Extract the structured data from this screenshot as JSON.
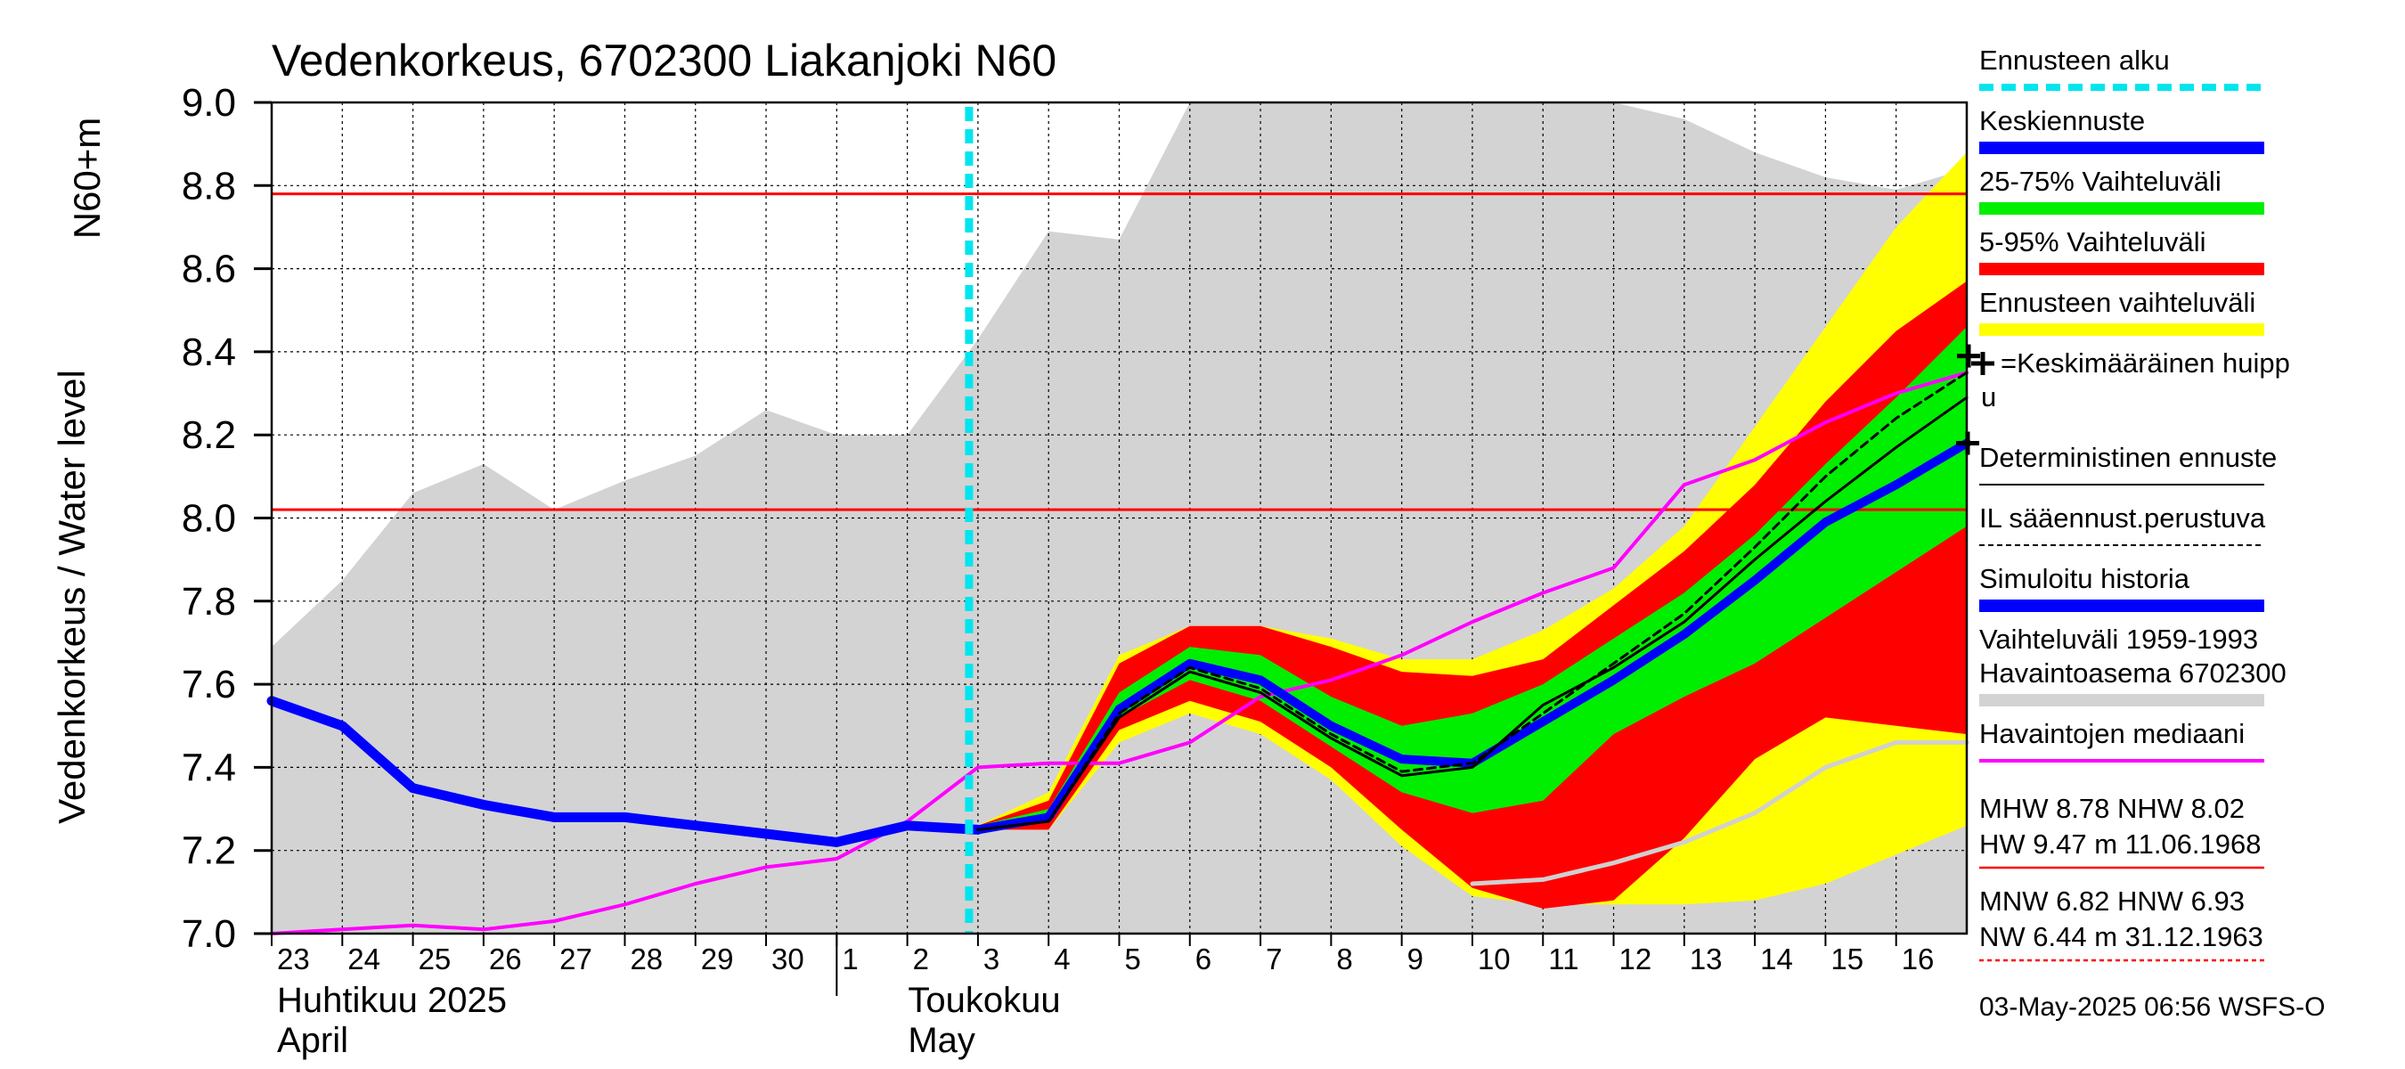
{
  "chart_data": {
    "type": "line",
    "title": "Vedenkorkeus, 6702300 Liakanjoki N60",
    "ylabel_top": "N60+m",
    "ylabel": "Vedenkorkeus / Water level",
    "ylim": [
      7.0,
      9.0
    ],
    "yticks": [
      "7.0",
      "7.2",
      "7.4",
      "7.6",
      "7.8",
      "8.0",
      "8.2",
      "8.4",
      "8.6",
      "8.8",
      "9.0"
    ],
    "x_range": [
      "2025-04-23",
      "2025-05-16"
    ],
    "x_tick_labels": [
      "23",
      "24",
      "25",
      "26",
      "27",
      "28",
      "29",
      "30",
      "1",
      "2",
      "3",
      "4",
      "5",
      "6",
      "7",
      "8",
      "9",
      "10",
      "11",
      "12",
      "13",
      "14",
      "15",
      "16"
    ],
    "months": [
      {
        "fi": "Huhtikuu  2025",
        "en": "April"
      },
      {
        "fi": "Toukokuu",
        "en": "May"
      }
    ],
    "grid": true,
    "forecast_start": "2025-05-03",
    "reference_lines": [
      {
        "label": "MHW",
        "value": 8.78,
        "color": "#ff0000"
      },
      {
        "label": "NHW",
        "value": 8.02,
        "color": "#ff0000"
      }
    ],
    "series": [
      {
        "name": "Vaihteluväli 1959-1993 Havaintoasema 6702300",
        "kind": "band",
        "color": "#d3d3d3",
        "x": [
          "04-23",
          "04-24",
          "04-25",
          "04-26",
          "04-27",
          "04-28",
          "04-29",
          "04-30",
          "05-01",
          "05-02",
          "05-03",
          "05-04",
          "05-05",
          "05-06",
          "05-07",
          "05-08",
          "05-09",
          "05-10",
          "05-11",
          "05-12",
          "05-13",
          "05-14",
          "05-15",
          "05-16",
          "05-17"
        ],
        "upper": [
          7.69,
          7.85,
          8.06,
          8.13,
          8.02,
          8.09,
          8.15,
          8.26,
          8.2,
          8.2,
          8.43,
          8.69,
          8.67,
          9.0,
          9.0,
          9.0,
          9.0,
          9.0,
          9.0,
          9.0,
          8.96,
          8.88,
          8.82,
          8.79,
          8.84
        ],
        "lower": [
          7.0,
          7.0,
          7.0,
          7.0,
          7.0,
          7.0,
          7.0,
          7.0,
          7.0,
          7.0,
          7.0,
          7.0,
          7.0,
          7.0,
          7.0,
          7.0,
          7.0,
          7.0,
          7.0,
          7.0,
          7.0,
          7.0,
          7.0,
          7.0,
          7.0
        ]
      },
      {
        "name": "Ennusteen vaihteluväli",
        "kind": "band",
        "color": "#ffff00",
        "x": [
          "05-03",
          "05-04",
          "05-05",
          "05-06",
          "05-07",
          "05-08",
          "05-09",
          "05-10",
          "05-11",
          "05-12",
          "05-13",
          "05-14",
          "05-15",
          "05-16",
          "05-17"
        ],
        "upper": [
          7.26,
          7.34,
          7.67,
          7.74,
          7.74,
          7.71,
          7.66,
          7.66,
          7.73,
          7.83,
          7.98,
          8.22,
          8.46,
          8.7,
          8.88
        ],
        "lower": [
          7.25,
          7.25,
          7.46,
          7.53,
          7.48,
          7.37,
          7.21,
          7.09,
          7.07,
          7.07,
          7.07,
          7.08,
          7.12,
          7.19,
          7.26
        ]
      },
      {
        "name": "5-95% Vaihteluväli",
        "kind": "band",
        "color": "#ff0000",
        "x": [
          "05-03",
          "05-04",
          "05-05",
          "05-06",
          "05-07",
          "05-08",
          "05-09",
          "05-10",
          "05-11",
          "05-12",
          "05-13",
          "05-14",
          "05-15",
          "05-16",
          "05-17"
        ],
        "upper": [
          7.26,
          7.32,
          7.65,
          7.74,
          7.74,
          7.69,
          7.63,
          7.62,
          7.66,
          7.79,
          7.92,
          8.08,
          8.28,
          8.45,
          8.57
        ],
        "lower": [
          7.25,
          7.25,
          7.49,
          7.56,
          7.51,
          7.4,
          7.25,
          7.11,
          7.06,
          7.08,
          7.23,
          7.42,
          7.52,
          7.5,
          7.48
        ]
      },
      {
        "name": "25-75% Vaihteluväli",
        "kind": "band",
        "color": "#00ee00",
        "x": [
          "05-03",
          "05-04",
          "05-05",
          "05-06",
          "05-07",
          "05-08",
          "05-09",
          "05-10",
          "05-11",
          "05-12",
          "05-13",
          "05-14",
          "05-15",
          "05-16",
          "05-17"
        ],
        "upper": [
          7.26,
          7.3,
          7.58,
          7.69,
          7.67,
          7.57,
          7.5,
          7.53,
          7.6,
          7.71,
          7.82,
          7.96,
          8.13,
          8.29,
          8.46
        ],
        "lower": [
          7.25,
          7.27,
          7.52,
          7.61,
          7.56,
          7.45,
          7.34,
          7.29,
          7.32,
          7.48,
          7.57,
          7.65,
          7.76,
          7.87,
          7.98
        ]
      },
      {
        "name": "Havaintojen mediaani",
        "kind": "line",
        "color": "#ff00ff",
        "x": [
          "04-23",
          "04-24",
          "04-25",
          "04-26",
          "04-27",
          "04-28",
          "04-29",
          "04-30",
          "05-01",
          "05-02",
          "05-03",
          "05-04",
          "05-05",
          "05-06",
          "05-07",
          "05-08",
          "05-09",
          "05-10",
          "05-11",
          "05-12",
          "05-13",
          "05-14",
          "05-15",
          "05-16",
          "05-17"
        ],
        "y": [
          6.99,
          7.01,
          7.02,
          7.01,
          7.03,
          7.07,
          7.12,
          7.16,
          7.18,
          7.27,
          7.4,
          7.41,
          7.41,
          7.46,
          7.57,
          7.61,
          7.67,
          7.75,
          7.82,
          7.88,
          8.08,
          8.14,
          8.23,
          8.3,
          8.35
        ]
      },
      {
        "name": "Simuloitu historia",
        "kind": "line",
        "color": "#0000ff",
        "x": [
          "04-23",
          "04-24",
          "04-25",
          "04-26",
          "04-27",
          "04-28",
          "04-29",
          "04-30",
          "05-01",
          "05-02",
          "05-03"
        ],
        "y": [
          7.56,
          7.5,
          7.35,
          7.31,
          7.28,
          7.28,
          7.26,
          7.24,
          7.22,
          7.26,
          7.25
        ]
      },
      {
        "name": "Keskiennuste",
        "kind": "line",
        "color": "#0000ff",
        "x": [
          "05-03",
          "05-04",
          "05-05",
          "05-06",
          "05-07",
          "05-08",
          "05-09",
          "05-10",
          "05-11",
          "05-12",
          "05-13",
          "05-14",
          "05-15",
          "05-16",
          "05-17"
        ],
        "y": [
          7.25,
          7.28,
          7.54,
          7.65,
          7.61,
          7.5,
          7.42,
          7.41,
          7.51,
          7.61,
          7.72,
          7.85,
          7.99,
          8.08,
          8.18
        ]
      },
      {
        "name": "Deterministinen ennuste",
        "kind": "line",
        "color": "#000000",
        "x": [
          "05-03",
          "05-04",
          "05-05",
          "05-06",
          "05-07",
          "05-08",
          "05-09",
          "05-10",
          "05-11",
          "05-12",
          "05-13",
          "05-14",
          "05-15",
          "05-16",
          "05-17"
        ],
        "y": [
          7.25,
          7.27,
          7.52,
          7.63,
          7.58,
          7.47,
          7.38,
          7.4,
          7.55,
          7.64,
          7.75,
          7.9,
          8.04,
          8.17,
          8.29
        ]
      },
      {
        "name": "IL sääennust.perustuva",
        "kind": "line",
        "style": "dashed",
        "color": "#000000",
        "x": [
          "05-03",
          "05-04",
          "05-05",
          "05-06",
          "05-07",
          "05-08",
          "05-09",
          "05-10",
          "05-11",
          "05-12",
          "05-13",
          "05-14",
          "05-15",
          "05-16",
          "05-17"
        ],
        "y": [
          7.25,
          7.27,
          7.53,
          7.64,
          7.59,
          7.48,
          7.39,
          7.41,
          7.53,
          7.65,
          7.77,
          7.93,
          8.1,
          8.24,
          8.35
        ]
      },
      {
        "name": "HW historia",
        "kind": "line",
        "color": "#d0d0d0",
        "x": [
          "05-10",
          "05-11",
          "05-12",
          "05-13",
          "05-14",
          "05-15",
          "05-16",
          "05-17"
        ],
        "y": [
          7.12,
          7.13,
          7.17,
          7.22,
          7.29,
          7.4,
          7.46,
          7.46
        ]
      }
    ]
  },
  "legend": {
    "items": [
      {
        "label": "Ennusteen alku",
        "color": "#00e5ee",
        "style": "dashed"
      },
      {
        "label": "Keskiennuste",
        "color": "#0000ff",
        "style": "thick"
      },
      {
        "label": "25-75% Vaihteluväli",
        "color": "#00ee00",
        "style": "thick"
      },
      {
        "label": "5-95% Vaihteluväli",
        "color": "#ff0000",
        "style": "thick"
      },
      {
        "label": "Ennusteen vaihteluväli",
        "color": "#ffff00",
        "style": "thick"
      },
      {
        "label": "=Keskimääräinen huipp",
        "label2": "u",
        "style": "marker"
      },
      {
        "label": "Deterministinen ennuste",
        "color": "#000000",
        "style": "thin"
      },
      {
        "label": "IL sääennust.perustuva",
        "color": "#000000",
        "style": "dashed-thin"
      },
      {
        "label": "Simuloitu historia",
        "color": "#0000ff",
        "style": "thick"
      },
      {
        "label": "Vaihteluväli 1959-1993",
        "label2": " Havaintoasema 6702300",
        "color": "#d3d3d3",
        "style": "thick"
      },
      {
        "label": "Havaintojen mediaani",
        "color": "#ff00ff",
        "style": "medium"
      }
    ],
    "stats": [
      {
        "line1": "MHW   8.78 NHW   8.02",
        "line2": "HW   9.47 m 11.06.1968",
        "color": "#ff0000",
        "style": "solid"
      },
      {
        "line1": "MNW   6.82 HNW   6.93",
        "line2": "NW   6.44 m 31.12.1963",
        "color": "#ff0000",
        "style": "dotted"
      }
    ]
  },
  "footer": "03-May-2025 06:56 WSFS-O"
}
